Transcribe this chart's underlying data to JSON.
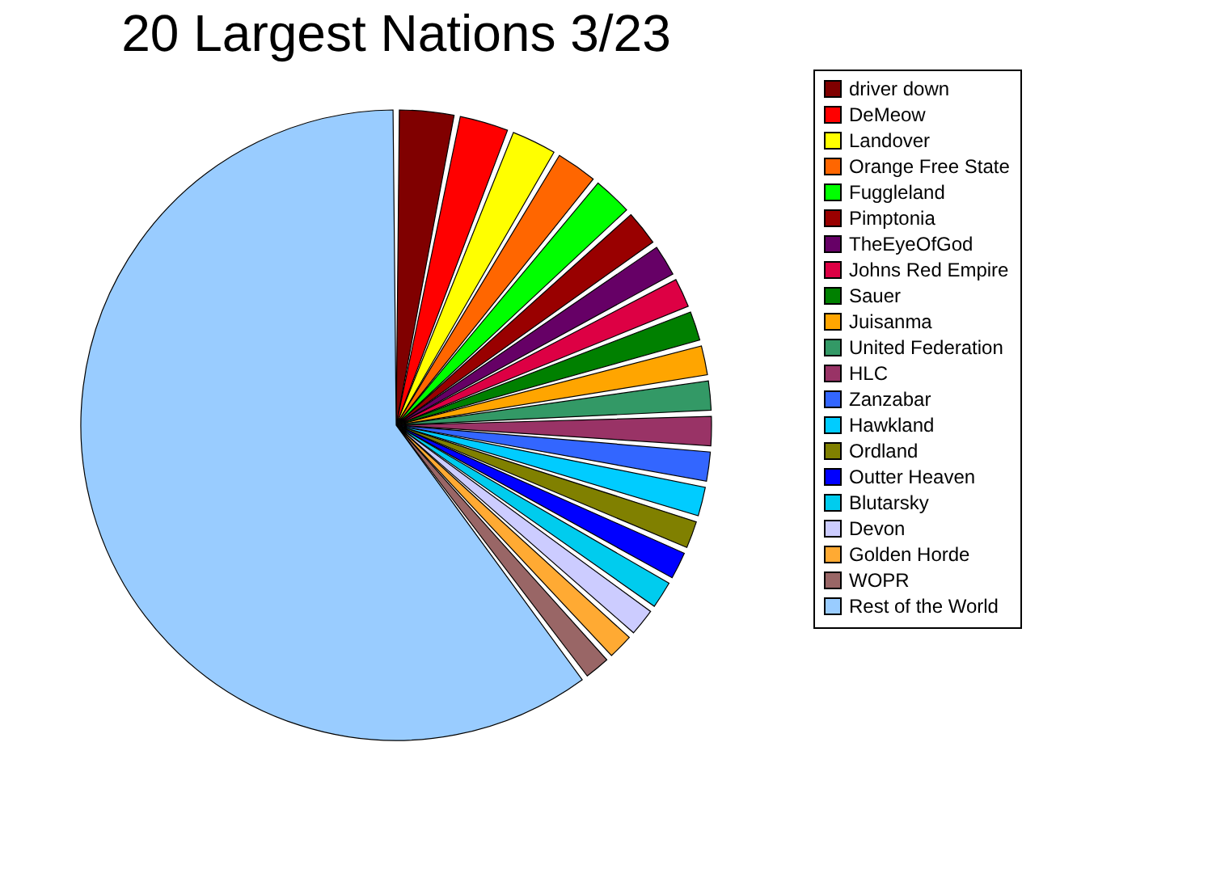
{
  "chart_data": {
    "type": "pie",
    "title": "20 Largest Nations 3/23",
    "categories": [
      "driver down",
      "DeMeow",
      "Landover",
      "Orange Free State",
      "Fuggleland",
      "Pimptonia",
      "TheEyeOfGod",
      "Johns Red Empire",
      "Sauer",
      "Juisanma",
      "United Federation",
      "HLC",
      "Zanzabar",
      "Hawkland",
      "Ordland",
      "Outter Heaven",
      "Blutarsky",
      "Devon",
      "Golden Horde",
      "WOPR",
      "Rest of the World"
    ],
    "values": [
      3.1,
      2.8,
      2.6,
      2.4,
      2.3,
      2.1,
      1.9,
      1.8,
      1.8,
      1.8,
      1.8,
      1.8,
      1.8,
      1.8,
      1.7,
      1.7,
      1.7,
      1.7,
      1.6,
      1.6,
      60.2
    ],
    "colors": [
      "#800000",
      "#ff0000",
      "#ffff00",
      "#ff6600",
      "#00ff00",
      "#990000",
      "#660066",
      "#dd0044",
      "#008000",
      "#ffa500",
      "#339966",
      "#993366",
      "#3366ff",
      "#00ccff",
      "#808000",
      "#0000ff",
      "#00ccee",
      "#ccccff",
      "#ffaa33",
      "#996666",
      "#99ccff"
    ],
    "legend": "right"
  }
}
